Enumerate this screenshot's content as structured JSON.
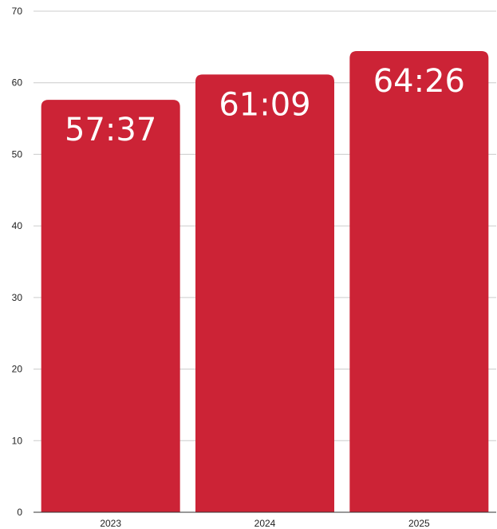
{
  "chart_data": {
    "type": "bar",
    "categories": [
      "2023",
      "2024",
      "2025"
    ],
    "values": [
      57.62,
      61.15,
      64.43
    ],
    "data_labels": [
      "57:37",
      "61:09",
      "64:26"
    ],
    "ylim": [
      0,
      70
    ],
    "yticks": [
      "0",
      "10",
      "20",
      "30",
      "40",
      "50",
      "60",
      "70"
    ],
    "title": "",
    "xlabel": "",
    "ylabel": "",
    "grid": true,
    "legend": "none",
    "colors": {
      "bar": "#cc2336",
      "grid": "#cccccc",
      "axis": "#333333",
      "text": "#222222",
      "label": "#ffffff"
    }
  }
}
